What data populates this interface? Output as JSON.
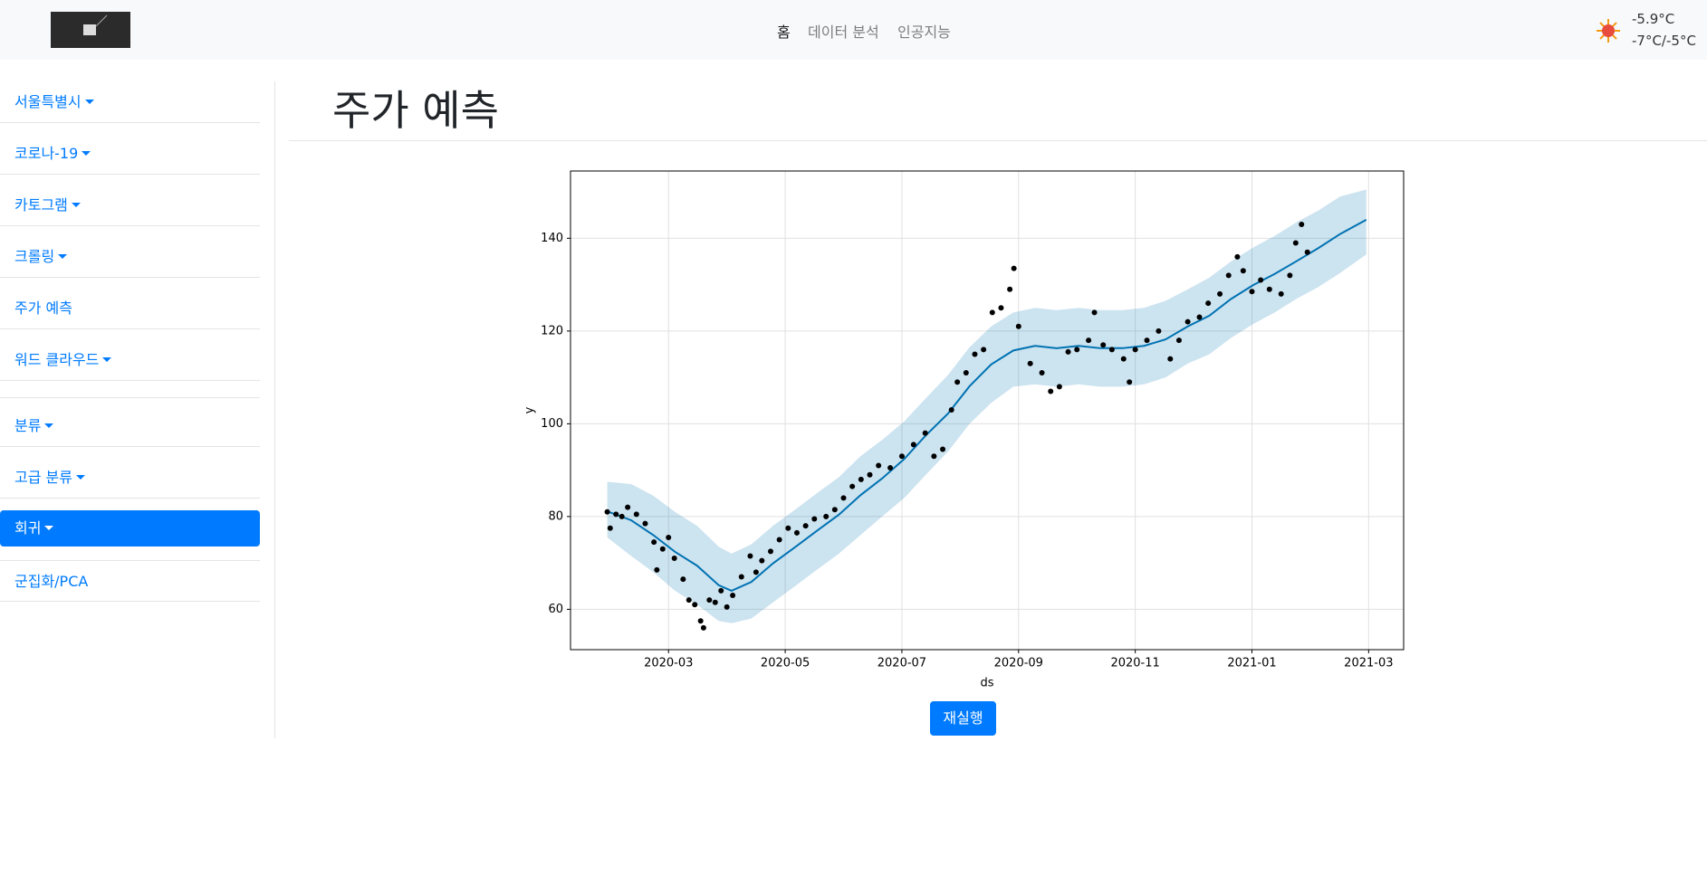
{
  "navbar": {
    "links": [
      "홈",
      "데이터 분석",
      "인공지능"
    ],
    "weather": {
      "temp": "-5.9°C",
      "range": "-7°C/-5°C"
    }
  },
  "sidebar": {
    "items": [
      "서울특별시",
      "코로나-19",
      "카토그램",
      "크롤링",
      "주가 예측",
      "워드 클라우드",
      "분류",
      "고급 분류",
      "회귀",
      "군집화/PCA"
    ]
  },
  "header": {
    "title": "주가 예측"
  },
  "button": {
    "label": "재실행"
  },
  "chart_data": {
    "type": "line",
    "xlabel": "ds",
    "ylabel": "y",
    "xlim": [
      1.32,
      15.6
    ],
    "ylim": [
      51.3,
      154.5
    ],
    "xticks": [
      {
        "value": 3,
        "label": "2020-03"
      },
      {
        "value": 5,
        "label": "2020-05"
      },
      {
        "value": 7,
        "label": "2020-07"
      },
      {
        "value": 9,
        "label": "2020-09"
      },
      {
        "value": 11,
        "label": "2020-11"
      },
      {
        "value": 13,
        "label": "2021-01"
      },
      {
        "value": 15,
        "label": "2021-03"
      }
    ],
    "yticks": [
      60,
      80,
      100,
      120,
      140
    ],
    "grid": true,
    "observed": {
      "color": "#000000",
      "x": [
        1.95,
        2.0,
        2.1,
        2.2,
        2.3,
        2.45,
        2.6,
        2.75,
        2.8,
        2.9,
        3.0,
        3.1,
        3.25,
        3.35,
        3.45,
        3.55,
        3.6,
        3.7,
        3.8,
        3.9,
        4.0,
        4.1,
        4.25,
        4.4,
        4.5,
        4.6,
        4.75,
        4.9,
        5.05,
        5.2,
        5.35,
        5.5,
        5.7,
        5.85,
        6.0,
        6.15,
        6.3,
        6.45,
        6.6,
        6.8,
        7.0,
        7.2,
        7.4,
        7.55,
        7.7,
        7.85,
        7.95,
        8.1,
        8.25,
        8.4,
        8.55,
        8.7,
        8.85,
        8.92,
        9.0,
        9.2,
        9.4,
        9.55,
        9.7,
        9.85,
        10.0,
        10.2,
        10.3,
        10.45,
        10.6,
        10.8,
        10.9,
        11.0,
        11.2,
        11.4,
        11.6,
        11.75,
        11.9,
        12.1,
        12.25,
        12.45,
        12.6,
        12.75,
        12.85,
        13.0,
        13.15,
        13.3,
        13.5,
        13.65,
        13.75,
        13.85,
        13.95
      ],
      "values": [
        81,
        77.5,
        80.5,
        80,
        82,
        80.5,
        78.5,
        74.5,
        68.5,
        73,
        75.5,
        71,
        66.5,
        62,
        61,
        57.5,
        56,
        62,
        61.5,
        64,
        60.5,
        63,
        67,
        71.5,
        68,
        70.5,
        72.5,
        75,
        77.5,
        76.5,
        78,
        79.5,
        80,
        81.5,
        84,
        86.5,
        88,
        89,
        91,
        90.5,
        93,
        95.5,
        98,
        93,
        94.5,
        103,
        109,
        111,
        115,
        116,
        124,
        125,
        129,
        133.5,
        121,
        113,
        111,
        107,
        108,
        115.5,
        116,
        118,
        124,
        117,
        116,
        114,
        109,
        116,
        118,
        120,
        114,
        118,
        122,
        123,
        126,
        128,
        132,
        136,
        133,
        128.5,
        131,
        129,
        128,
        132,
        139,
        143,
        137
      ]
    },
    "forecast": {
      "color": "#0072b2",
      "band_color": "#0072b2",
      "x": [
        1.95,
        2.36,
        2.74,
        3.11,
        3.49,
        3.86,
        4.08,
        4.42,
        4.79,
        5.17,
        5.54,
        5.92,
        6.29,
        6.66,
        7.04,
        7.41,
        7.79,
        8.16,
        8.53,
        8.91,
        9.28,
        9.65,
        10.03,
        10.4,
        10.78,
        11.15,
        11.52,
        11.9,
        12.27,
        12.64,
        13.02,
        13.39,
        13.77,
        14.14,
        14.51,
        14.96
      ],
      "values": [
        81.1,
        79.2,
        76.0,
        72.4,
        69.4,
        65.2,
        64.0,
        65.9,
        69.9,
        73.4,
        76.9,
        80.4,
        84.6,
        88.2,
        92.4,
        97.5,
        102.2,
        108.1,
        112.8,
        115.8,
        116.8,
        116.3,
        116.8,
        116.3,
        116.3,
        116.8,
        118.2,
        121.0,
        123.3,
        126.9,
        129.9,
        132.3,
        135.1,
        137.9,
        140.9,
        144.0
      ],
      "lower": [
        75.5,
        71.5,
        68.0,
        64.0,
        61.0,
        57.5,
        57.0,
        58.0,
        61.5,
        65.0,
        68.5,
        72.0,
        76.0,
        80.0,
        84.0,
        89.0,
        94.0,
        100.0,
        104.5,
        108.0,
        108.5,
        108.0,
        108.5,
        108.0,
        108.0,
        108.5,
        110.0,
        113.0,
        115.0,
        118.5,
        121.5,
        124.0,
        127.0,
        129.5,
        132.5,
        136.5
      ],
      "upper": [
        87.5,
        87.0,
        84.5,
        81.0,
        78.0,
        73.5,
        72.0,
        74.0,
        78.0,
        81.5,
        85.0,
        88.5,
        93.0,
        96.5,
        100.5,
        105.5,
        110.5,
        116.5,
        121.0,
        124.0,
        125.0,
        124.5,
        125.0,
        124.5,
        124.5,
        125.0,
        126.5,
        129.0,
        131.5,
        135.0,
        138.0,
        140.5,
        143.5,
        146.0,
        149.0,
        150.5
      ]
    }
  }
}
